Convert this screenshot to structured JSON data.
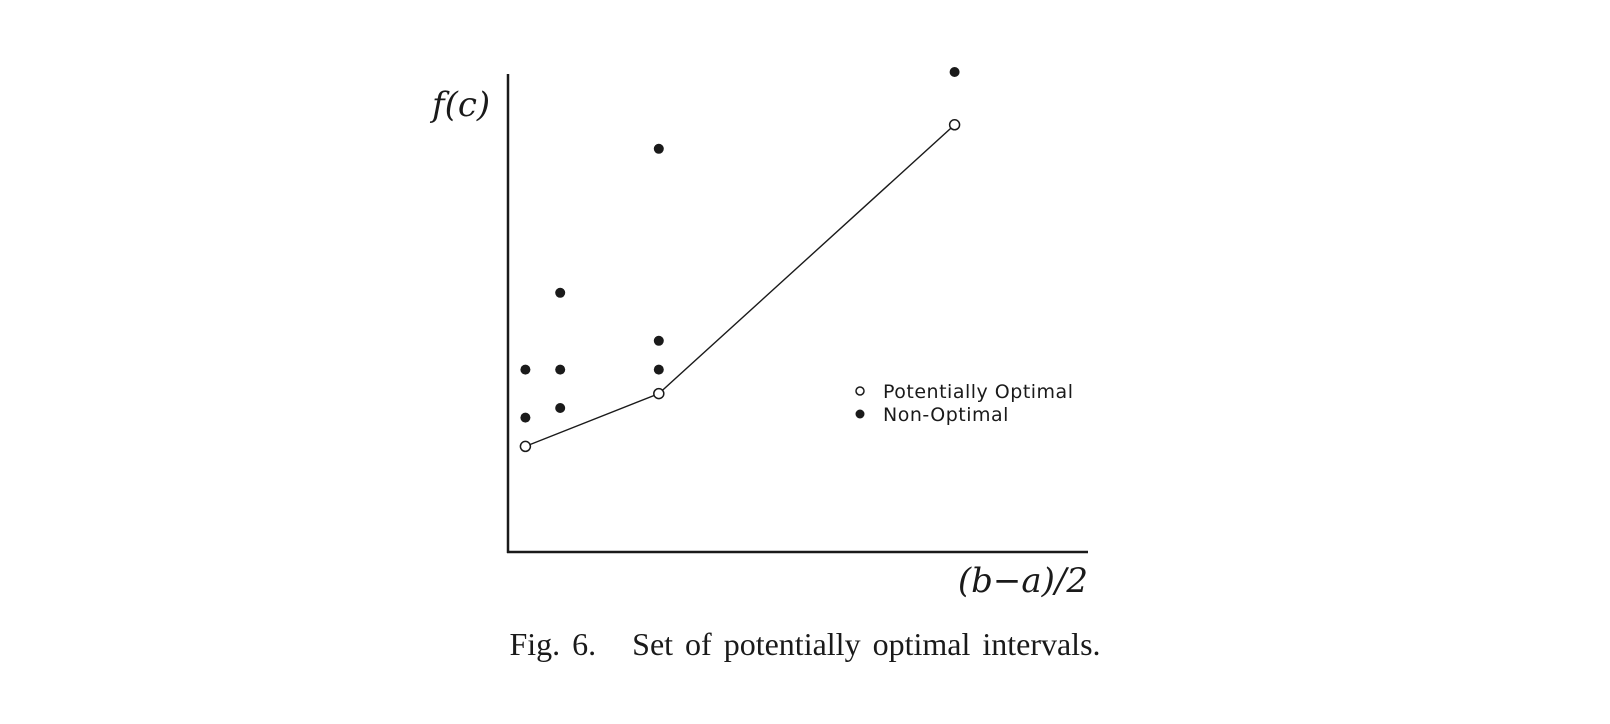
{
  "chart_data": {
    "type": "scatter",
    "xlabel": "(b−a)/2",
    "ylabel": "f(c)",
    "xlim": [
      0,
      1
    ],
    "ylim": [
      0,
      1
    ],
    "grid": false,
    "legend_position": "right",
    "series": [
      {
        "name": "Potentially Optimal",
        "marker": "open-circle",
        "connected": true,
        "points": [
          {
            "x": 0.03,
            "y": 0.22
          },
          {
            "x": 0.26,
            "y": 0.33
          },
          {
            "x": 0.77,
            "y": 0.89
          }
        ]
      },
      {
        "name": "Non-Optimal",
        "marker": "filled-circle",
        "connected": false,
        "points": [
          {
            "x": 0.03,
            "y": 0.28
          },
          {
            "x": 0.03,
            "y": 0.38
          },
          {
            "x": 0.09,
            "y": 0.3
          },
          {
            "x": 0.09,
            "y": 0.38
          },
          {
            "x": 0.09,
            "y": 0.54
          },
          {
            "x": 0.26,
            "y": 0.38
          },
          {
            "x": 0.26,
            "y": 0.44
          },
          {
            "x": 0.26,
            "y": 0.84
          },
          {
            "x": 0.77,
            "y": 1.0
          }
        ]
      }
    ]
  },
  "caption": "Fig. 6.   Set of potentially optimal intervals.",
  "colors": {
    "ink": "#1a1a1a",
    "background": "#ffffff"
  }
}
